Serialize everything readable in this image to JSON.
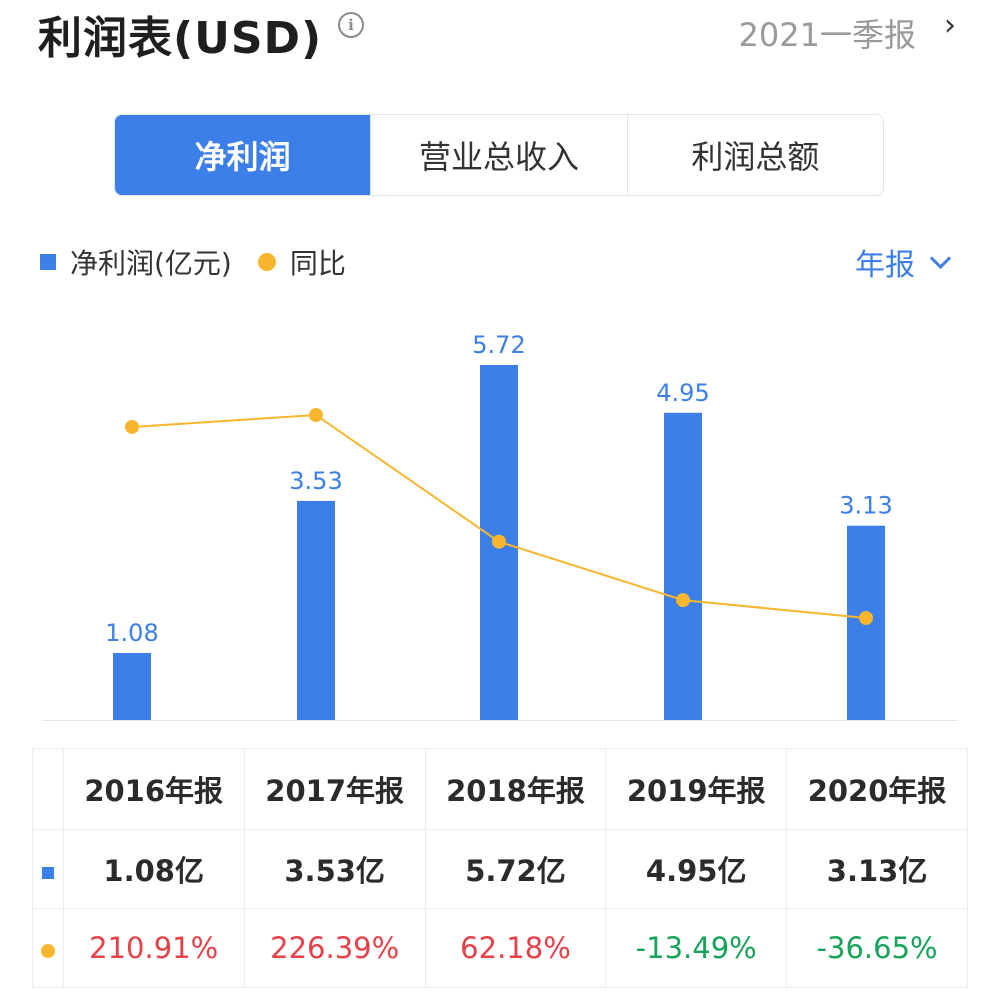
{
  "header": {
    "title": "利润表(USD)",
    "info_icon": "info-icon",
    "period": "2021一季报",
    "arrow_icon": "chevron-right-icon"
  },
  "tabs": [
    {
      "label": "净利润",
      "active": true
    },
    {
      "label": "营业总收入",
      "active": false
    },
    {
      "label": "利润总额",
      "active": false
    }
  ],
  "legend": {
    "bar_label": "净利润(亿元)",
    "line_label": "同比"
  },
  "period_select": {
    "label": "年报",
    "icon": "chevron-down-icon"
  },
  "colors": {
    "bar": "#3d7fe8",
    "line": "#f8b62f",
    "positive": "#e84048",
    "negative": "#17a35a",
    "active_tab": "#3d7fe8"
  },
  "chart_data": {
    "type": "bar",
    "categories": [
      "2016年报",
      "2017年报",
      "2018年报",
      "2019年报",
      "2020年报"
    ],
    "series": [
      {
        "name": "净利润(亿元)",
        "type": "bar",
        "values": [
          1.08,
          3.53,
          5.72,
          4.95,
          3.13
        ],
        "labels": [
          "1.08",
          "3.53",
          "5.72",
          "4.95",
          "3.13"
        ]
      },
      {
        "name": "同比",
        "type": "line",
        "values": [
          210.91,
          226.39,
          62.18,
          -13.49,
          -36.65
        ]
      }
    ],
    "grid": false
  },
  "table": {
    "headers": [
      "2016年报",
      "2017年报",
      "2018年报",
      "2019年报",
      "2020年报"
    ],
    "values": [
      "1.08亿",
      "3.53亿",
      "5.72亿",
      "4.95亿",
      "3.13亿"
    ],
    "yoy": [
      "210.91%",
      "226.39%",
      "62.18%",
      "-13.49%",
      "-36.65%"
    ]
  }
}
